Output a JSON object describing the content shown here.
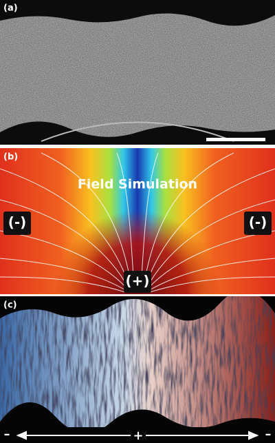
{
  "panels": [
    {
      "label": "(a)"
    },
    {
      "label": "(b)",
      "title": "Field Simulation",
      "electrodes": [
        "(-)",
        "(-)",
        "(+)"
      ]
    },
    {
      "label": "(c)",
      "polarity": [
        "–",
        "+",
        "–"
      ]
    }
  ]
}
